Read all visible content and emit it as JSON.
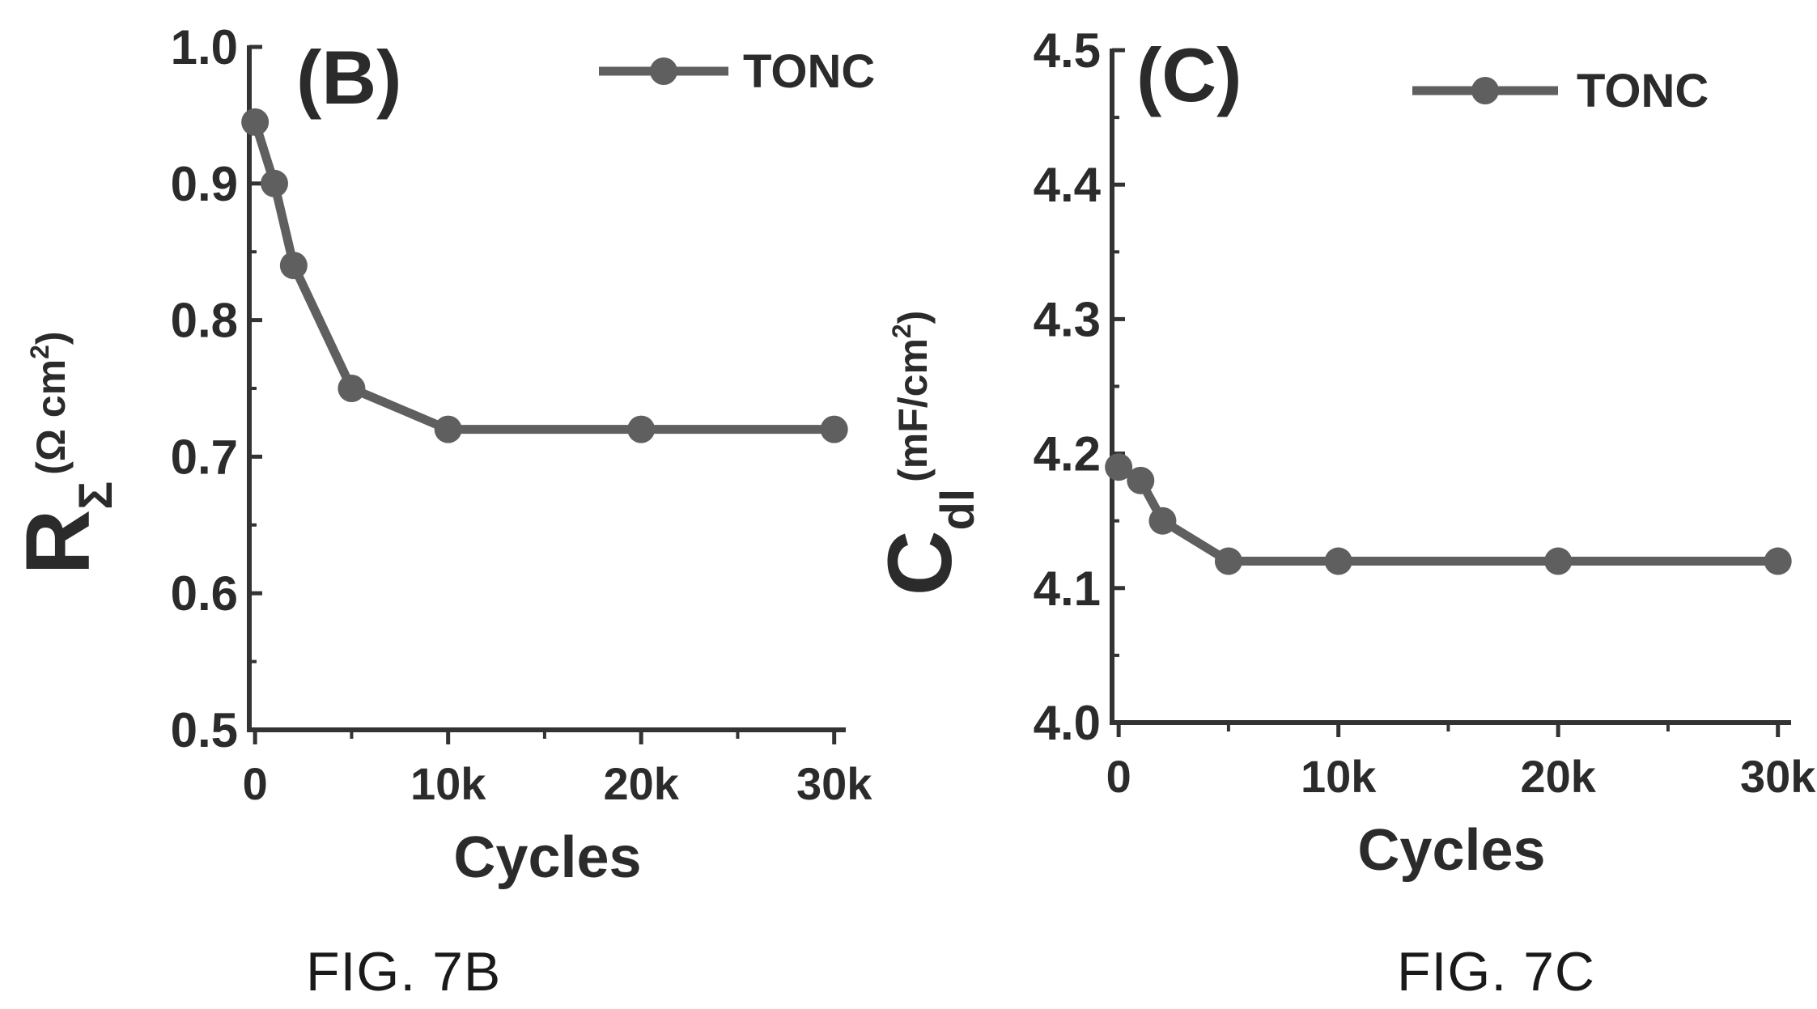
{
  "chart_data": [
    {
      "type": "line",
      "panel_label": "(B)",
      "xlabel": "Cycles",
      "ylabel": {
        "main": "R",
        "subscript": "Σ",
        "unit_open": "(Ω cm",
        "unit_sup": "2",
        "unit_close": ")"
      },
      "x_tick_values": [
        0,
        10000,
        20000,
        30000
      ],
      "x_tick_labels": [
        "0",
        "10k",
        "20k",
        "30k"
      ],
      "x_minor_ticks": [
        5000,
        15000,
        25000
      ],
      "xlim": [
        -300,
        30600
      ],
      "ylim": [
        0.5,
        1.0
      ],
      "y_tick_values": [
        0.5,
        0.6,
        0.7,
        0.8,
        0.9,
        1.0
      ],
      "y_tick_labels": [
        "0.5",
        "0.6",
        "0.7",
        "0.8",
        "0.9",
        "1.0"
      ],
      "legend_position": "top-right",
      "grid": false,
      "series": [
        {
          "name": "TONC",
          "color": "#5f5f5f",
          "x": [
            0,
            1000,
            2000,
            5000,
            10000,
            20000,
            30000
          ],
          "y": [
            0.945,
            0.9,
            0.84,
            0.75,
            0.72,
            0.72,
            0.72
          ]
        }
      ]
    },
    {
      "type": "line",
      "panel_label": "(C)",
      "xlabel": "Cycles",
      "ylabel": {
        "main": "C",
        "subscript": "dl",
        "unit_open": "(mF/cm",
        "unit_sup": "2",
        "unit_close": ")"
      },
      "x_tick_values": [
        0,
        10000,
        20000,
        30000
      ],
      "x_tick_labels": [
        "0",
        "10k",
        "20k",
        "30k"
      ],
      "x_minor_ticks": [
        5000,
        15000,
        25000
      ],
      "xlim": [
        -300,
        30600
      ],
      "ylim": [
        4.0,
        4.5
      ],
      "y_tick_values": [
        4.0,
        4.1,
        4.2,
        4.3,
        4.4,
        4.5
      ],
      "y_tick_labels": [
        "4.0",
        "4.1",
        "4.2",
        "4.3",
        "4.4",
        "4.5"
      ],
      "legend_position": "top-right",
      "grid": false,
      "series": [
        {
          "name": "TONC",
          "color": "#5f5f5f",
          "x": [
            0,
            1000,
            2000,
            5000,
            10000,
            20000,
            30000
          ],
          "y": [
            4.19,
            4.18,
            4.15,
            4.12,
            4.12,
            4.12,
            4.12
          ]
        }
      ]
    }
  ],
  "captions": {
    "fig_b": "FIG. 7B",
    "fig_c": "FIG. 7C"
  }
}
